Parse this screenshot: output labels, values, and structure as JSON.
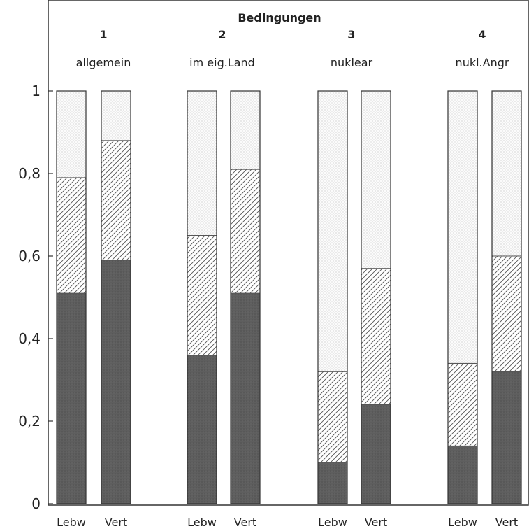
{
  "chart_data": {
    "type": "bar",
    "stacked": true,
    "title": "Bedingungen",
    "groups": [
      {
        "number": "1",
        "label": "allgemein"
      },
      {
        "number": "2",
        "label": "im eig.Land"
      },
      {
        "number": "3",
        "label": "nuklear"
      },
      {
        "number": "4",
        "label": "nukl.Angr"
      }
    ],
    "bar_labels": [
      "Lebw",
      "Vert"
    ],
    "yticks": [
      "0",
      "0,2",
      "0,4",
      "0,6",
      "0,8",
      "1"
    ],
    "ylim": [
      0,
      1
    ],
    "grid": false,
    "series": [
      {
        "pattern": "dark-solid",
        "values": [
          0.51,
          0.59,
          0.36,
          0.51,
          0.1,
          0.24,
          0.14,
          0.32
        ]
      },
      {
        "pattern": "diagonal-hatch",
        "values": [
          0.28,
          0.29,
          0.29,
          0.3,
          0.22,
          0.33,
          0.2,
          0.28
        ]
      },
      {
        "pattern": "light-dotted",
        "values": [
          0.21,
          0.12,
          0.35,
          0.19,
          0.68,
          0.43,
          0.66,
          0.4
        ]
      }
    ]
  },
  "colors": {
    "dark": "#5c5c5c",
    "hatch_line": "#555555",
    "light_dots": "#bdbdbd",
    "frame": "#333333"
  }
}
